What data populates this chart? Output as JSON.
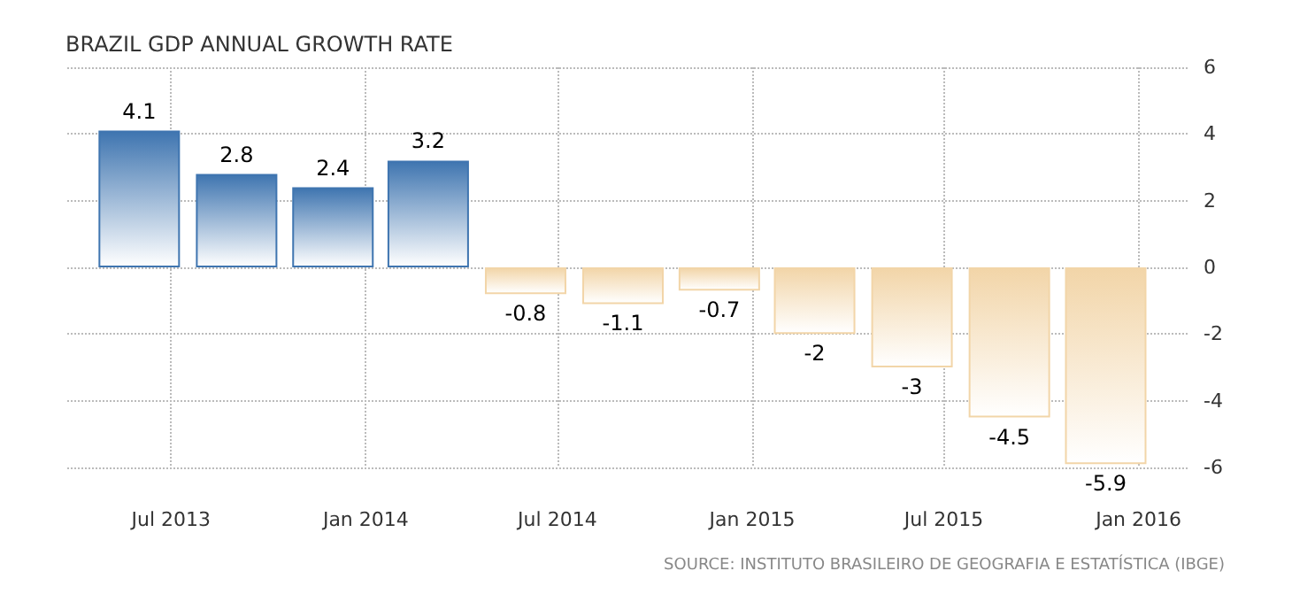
{
  "chart_data": {
    "type": "bar",
    "title": "BRAZIL GDP ANNUAL GROWTH RATE",
    "x": [
      "2013-06",
      "2013-09",
      "2013-12",
      "2014-03",
      "2014-06",
      "2014-09",
      "2014-12",
      "2015-03",
      "2015-06",
      "2015-09",
      "2015-12"
    ],
    "values": [
      4.1,
      2.8,
      2.4,
      3.2,
      -0.8,
      -1.1,
      -0.7,
      -2,
      -3,
      -4.5,
      -5.9
    ],
    "colors": [
      "#3f75b0",
      "#3f75b0",
      "#3f75b0",
      "#3f75b0",
      "#f2d5a8",
      "#f2d5a8",
      "#f2d5a8",
      "#f2d5a8",
      "#f2d5a8",
      "#f2d5a8",
      "#f2d5a8"
    ],
    "data_labels": true,
    "xlim": [
      "2013-03-25",
      "2016-02-18"
    ],
    "xticks": [
      {
        "value": "2013-07",
        "label": "Jul 2013"
      },
      {
        "value": "2014-01",
        "label": "Jan 2014"
      },
      {
        "value": "2014-07",
        "label": "Jul 2014"
      },
      {
        "value": "2015-01",
        "label": "Jan 2015"
      },
      {
        "value": "2015-07",
        "label": "Jul 2015"
      },
      {
        "value": "2016-01",
        "label": "Jan 2016"
      }
    ],
    "ylim": [
      -6,
      6
    ],
    "yticks": [
      -6,
      -4,
      -2,
      0,
      2,
      4,
      6
    ],
    "grid": true,
    "annotations": [
      "SOURCE: INSTITUTO BRASILEIRO DE GEOGRAFIA E ESTATÍSTICA (IBGE)"
    ]
  }
}
